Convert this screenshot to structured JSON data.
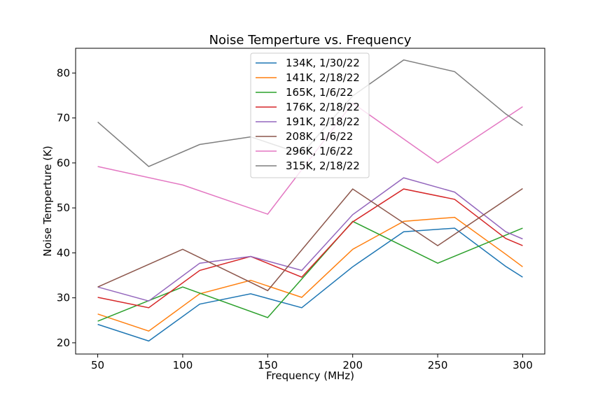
{
  "chart_data": {
    "type": "line",
    "title": "Noise Temperture vs. Frequency",
    "xlabel": "Frequency (MHz)",
    "ylabel": "Noise Temperture (K)",
    "xlim": [
      37,
      313
    ],
    "ylim": [
      17.5,
      85.5
    ],
    "xticks": [
      50,
      100,
      150,
      200,
      250,
      300
    ],
    "yticks": [
      20,
      30,
      40,
      50,
      60,
      70,
      80
    ],
    "grid": false,
    "legend_position": "upper center",
    "x": [
      50,
      80,
      110,
      140,
      170,
      200,
      230,
      260,
      290,
      300
    ],
    "series": [
      {
        "name": "134K, 1/30/22",
        "color": "#1f77b4",
        "x": [
          50,
          80,
          110,
          140,
          170,
          200,
          230,
          260,
          290,
          300
        ],
        "values": [
          24.1,
          20.4,
          28.6,
          30.9,
          27.8,
          36.9,
          44.7,
          45.5,
          37.0,
          34.6
        ]
      },
      {
        "name": "141K, 2/18/22",
        "color": "#ff7f0e",
        "x": [
          50,
          80,
          110,
          140,
          170,
          200,
          230,
          260,
          290,
          300
        ],
        "values": [
          26.4,
          22.6,
          30.9,
          33.9,
          30.1,
          40.8,
          47.0,
          47.9,
          39.7,
          36.9
        ]
      },
      {
        "name": "165K, 1/6/22",
        "color": "#2ca02c",
        "x": [
          50,
          100,
          150,
          200,
          250,
          300
        ],
        "values": [
          24.8,
          32.4,
          25.6,
          47.0,
          37.7,
          45.5
        ]
      },
      {
        "name": "176K, 2/18/22",
        "color": "#d62728",
        "x": [
          50,
          80,
          110,
          140,
          170,
          200,
          230,
          260,
          290,
          300
        ],
        "values": [
          30.1,
          27.8,
          36.1,
          39.2,
          34.6,
          46.9,
          54.2,
          51.9,
          43.2,
          41.6
        ]
      },
      {
        "name": "191K, 2/18/22",
        "color": "#9467bd",
        "x": [
          50,
          80,
          110,
          140,
          170,
          200,
          230,
          260,
          290,
          300
        ],
        "values": [
          32.4,
          29.3,
          37.7,
          39.2,
          36.1,
          48.5,
          56.7,
          53.5,
          44.7,
          43.1
        ]
      },
      {
        "name": "208K, 1/6/22",
        "color": "#8c564b",
        "x": [
          50,
          100,
          150,
          200,
          250,
          300
        ],
        "values": [
          32.4,
          40.8,
          31.6,
          54.2,
          41.6,
          54.3
        ]
      },
      {
        "name": "296K, 1/6/22",
        "color": "#e377c2",
        "x": [
          50,
          100,
          150,
          200,
          250,
          300
        ],
        "values": [
          59.2,
          55.1,
          48.6,
          73.3,
          60.0,
          72.5
        ]
      },
      {
        "name": "315K, 2/18/22",
        "color": "#7f7f7f",
        "x": [
          50,
          80,
          110,
          140,
          170,
          200,
          230,
          260,
          290,
          300
        ],
        "values": [
          69.1,
          59.2,
          64.1,
          65.8,
          62.0,
          74.9,
          82.9,
          80.3,
          70.9,
          68.3
        ]
      }
    ]
  }
}
